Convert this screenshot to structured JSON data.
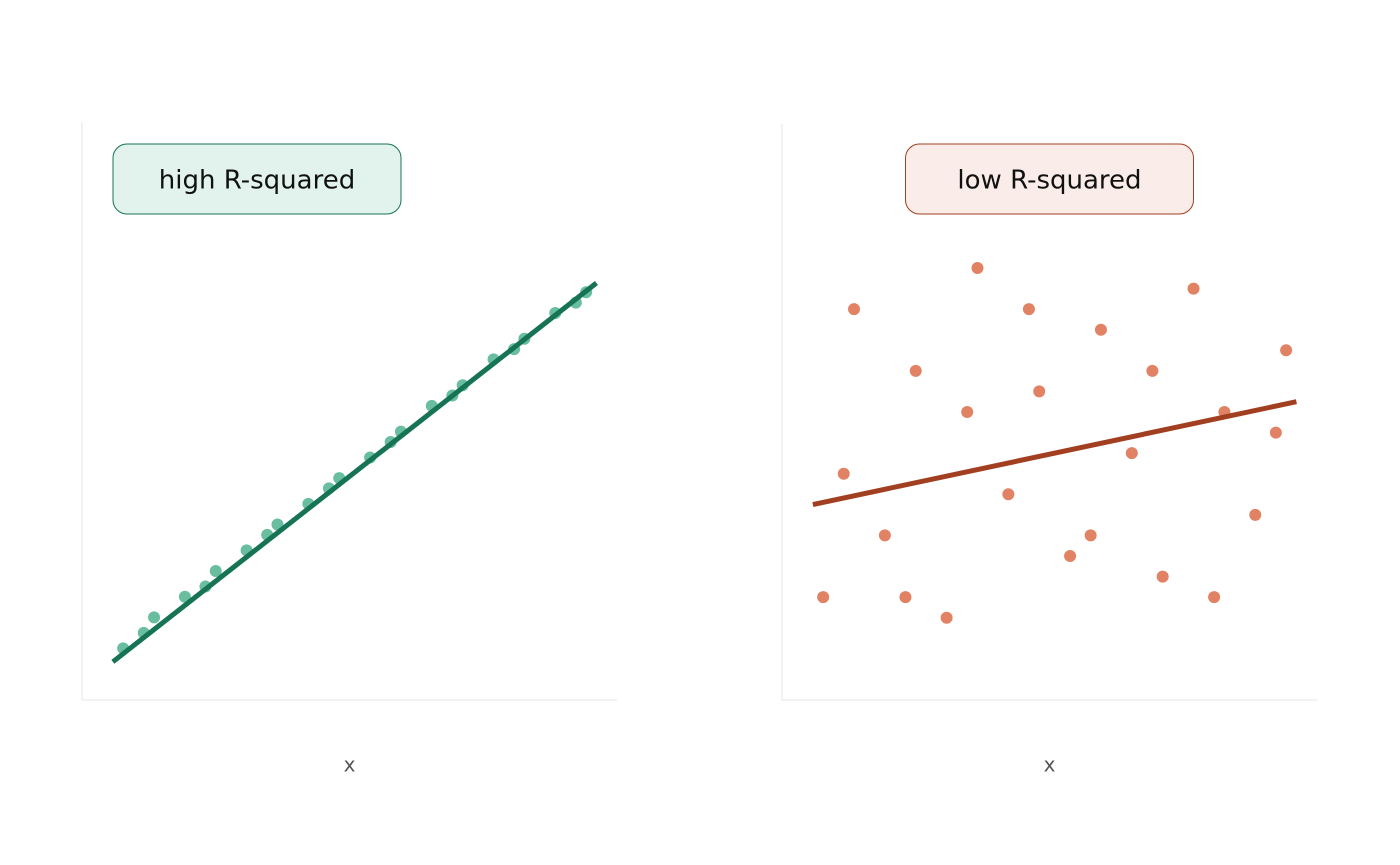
{
  "chart_data": [
    {
      "type": "scatter",
      "title": "high R-squared",
      "x_label": "x",
      "x": [
        4,
        6,
        7,
        10,
        12,
        13,
        16,
        18,
        19,
        22,
        24,
        25,
        28,
        30,
        31,
        34,
        36,
        37,
        40,
        42,
        43,
        46,
        48,
        49
      ],
      "values": [
        5,
        6.5,
        8,
        10,
        11,
        12.5,
        14.5,
        16,
        17,
        19,
        20.5,
        21.5,
        23.5,
        25,
        26,
        28.5,
        29.5,
        30.5,
        33,
        34,
        35,
        37.5,
        38.5,
        39.5
      ],
      "color": "#4fb38e",
      "fit": {
        "x": [
          3,
          50
        ],
        "values": [
          3.7,
          40.4
        ],
        "color": "#177356"
      },
      "label_fill": "#e2f3ed",
      "xlim": [
        0,
        52
      ],
      "ylim": [
        0,
        56
      ]
    },
    {
      "type": "scatter",
      "title": "low R-squared",
      "x_label": "x",
      "x": [
        4,
        6,
        7,
        10,
        12,
        13,
        16,
        18,
        19,
        22,
        24,
        25,
        28,
        30,
        31,
        34,
        36,
        37,
        40,
        42,
        43,
        46,
        48,
        49
      ],
      "values": [
        10,
        22,
        38,
        16,
        10,
        32,
        8,
        28,
        42,
        20,
        38,
        30,
        14,
        16,
        36,
        24,
        32,
        12,
        40,
        10,
        28,
        18,
        26,
        34
      ],
      "color": "#e07b5c",
      "fit": {
        "x": [
          3,
          50
        ],
        "values": [
          19,
          29
        ],
        "color": "#a23f20"
      },
      "label_fill": "#faece8",
      "xlim": [
        0,
        52
      ],
      "ylim": [
        0,
        56
      ]
    }
  ]
}
